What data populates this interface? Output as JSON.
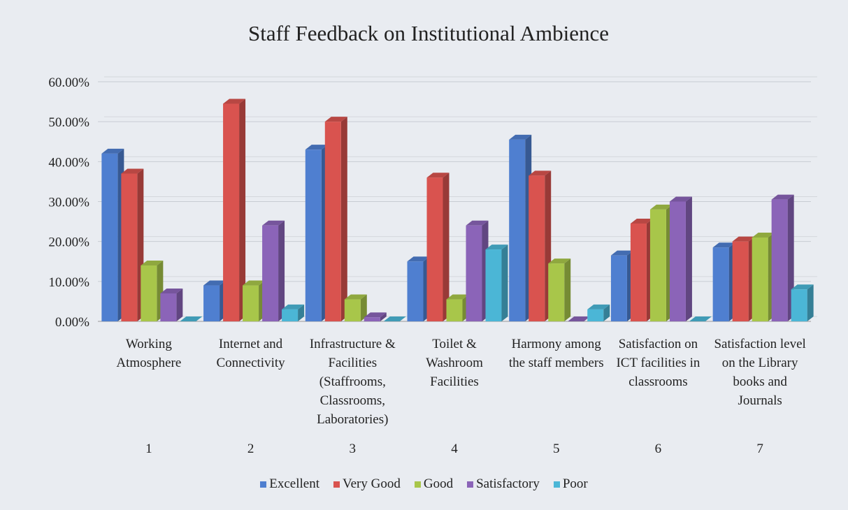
{
  "chart_data": {
    "type": "bar3d",
    "title": "Staff Feedback on Institutional Ambience",
    "categories": [
      "Working Atmosphere",
      "Internet and Connectivity",
      "Infrastructure & Facilities (Staffrooms, Classrooms, Laboratories)",
      "Toilet & Washroom Facilities",
      "Harmony among the staff members",
      "Satisfaction on ICT facilities in classrooms",
      "Satisfaction level on the Library books and Journals"
    ],
    "category_numbers": [
      1,
      2,
      3,
      4,
      5,
      6,
      7
    ],
    "series": [
      {
        "name": "Excellent",
        "color": "#4f7fd0",
        "values": [
          42,
          9,
          43,
          15,
          45.5,
          16.5,
          18.5
        ]
      },
      {
        "name": "Very Good",
        "color": "#d9534f",
        "values": [
          37,
          54.5,
          50,
          36,
          36.5,
          24.5,
          20
        ]
      },
      {
        "name": "Good",
        "color": "#a8c64a",
        "values": [
          14,
          9,
          5.5,
          5.5,
          14.5,
          28,
          21
        ]
      },
      {
        "name": "Satisfactory",
        "color": "#8b64b8",
        "values": [
          7,
          24,
          1,
          24,
          0,
          30,
          30.5
        ]
      },
      {
        "name": "Poor",
        "color": "#4bb6d6",
        "values": [
          0,
          3,
          0,
          18,
          3,
          0,
          8
        ]
      }
    ],
    "ylim": [
      0,
      60
    ],
    "yticks": [
      {
        "value": 0,
        "label": "0.00%"
      },
      {
        "value": 10,
        "label": "10.00%"
      },
      {
        "value": 20,
        "label": "20.00%"
      },
      {
        "value": 30,
        "label": "30.00%"
      },
      {
        "value": 40,
        "label": "40.00%"
      },
      {
        "value": 50,
        "label": "50.00%"
      },
      {
        "value": 60,
        "label": "60.00%"
      }
    ],
    "grid": true,
    "legend": "bottom"
  }
}
